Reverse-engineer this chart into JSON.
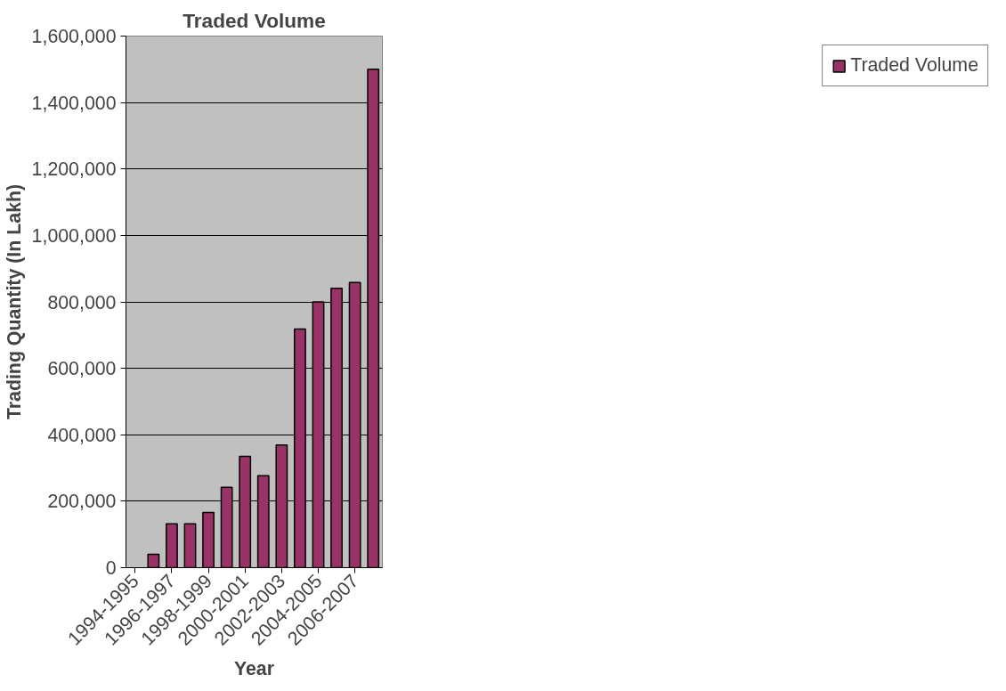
{
  "chart_data": {
    "type": "bar",
    "title": "Traded Volume",
    "xlabel": "Year",
    "ylabel": "Trading Quantity (In Lakh)",
    "categories": [
      "1994-1995",
      null,
      "1996-1997",
      null,
      "1998-1999",
      null,
      "2000-2001",
      null,
      "2002-2003",
      null,
      "2004-2005",
      null,
      "2006-2007",
      null
    ],
    "series": [
      {
        "name": "Traded Volume",
        "color": "#993366",
        "values": [
          null,
          40000,
          132000,
          132000,
          166000,
          242000,
          335000,
          277000,
          369000,
          718000,
          800000,
          841000,
          858000,
          1500000
        ]
      }
    ],
    "ylim": [
      0,
      1600000
    ],
    "yticks": [
      0,
      {
        "value": 200000,
        "label": "200,000"
      },
      {
        "value": 400000,
        "label": "400,000"
      },
      {
        "value": 600000,
        "label": "600,000"
      },
      {
        "value": 800000,
        "label": "800,000"
      },
      {
        "value": 1000000,
        "label": "1,000,000"
      },
      {
        "value": 1200000,
        "label": "1,200,000"
      },
      {
        "value": 1400000,
        "label": "1,400,000"
      },
      {
        "value": 1600000,
        "label": "1,600,000"
      }
    ],
    "grid": "y",
    "legend": "right"
  }
}
